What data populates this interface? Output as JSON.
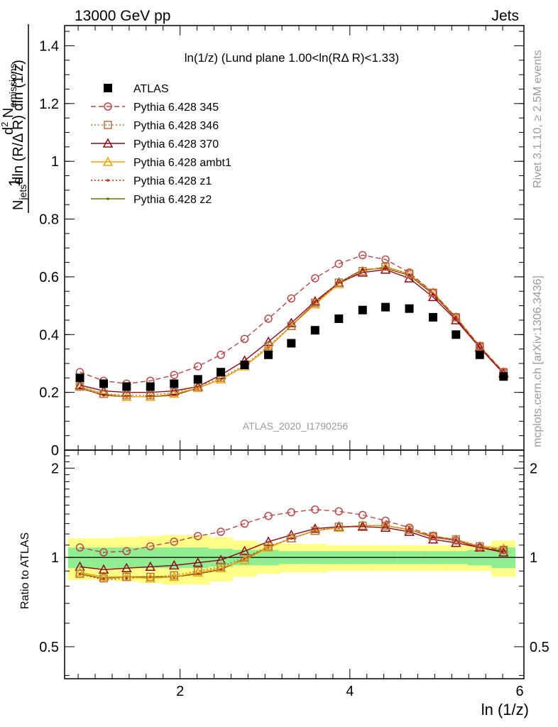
{
  "header": {
    "left": "13000 GeV pp",
    "right": "Jets"
  },
  "side_labels": {
    "rivet": "Rivet 3.1.10, ≥ 2.5M events",
    "mcplots": "mcplots.cern.ch [arXiv:1306.3436]"
  },
  "watermark": "ATLAS_2020_I1790256",
  "chart_data": [
    {
      "type": "scatter",
      "title": "ln(1/z) (Lund plane 1.00<ln(RΔ R)<1.33)",
      "xlabel": "ln (1/z)",
      "ylabel": "1/N_jets d²N_emissions / dln(R/ΔR) dln(1/z)",
      "xlim": [
        0.64,
        6.05
      ],
      "ylim": [
        0,
        1.47
      ],
      "yticks": [
        "0",
        "0.2",
        "0.4",
        "0.6",
        "0.8",
        "1",
        "1.2",
        "1.4"
      ],
      "xticks": [
        "2",
        "4",
        "6"
      ],
      "x": [
        0.82,
        1.1,
        1.37,
        1.65,
        1.93,
        2.21,
        2.48,
        2.76,
        3.04,
        3.31,
        3.59,
        3.87,
        4.15,
        4.42,
        4.7,
        4.98,
        5.25,
        5.53,
        5.81
      ],
      "series": [
        {
          "name": "ATLAS",
          "color": "#000000",
          "marker": "square",
          "line": "none",
          "values": [
            0.25,
            0.23,
            0.22,
            0.22,
            0.23,
            0.245,
            0.27,
            0.295,
            0.33,
            0.37,
            0.415,
            0.455,
            0.485,
            0.495,
            0.49,
            0.46,
            0.4,
            0.33,
            0.255
          ]
        },
        {
          "name": "Pythia 6.428 345",
          "color": "#b5484a",
          "marker": "circle",
          "line": "dashed",
          "values": [
            0.27,
            0.24,
            0.23,
            0.24,
            0.26,
            0.29,
            0.33,
            0.385,
            0.455,
            0.525,
            0.595,
            0.645,
            0.675,
            0.66,
            0.615,
            0.545,
            0.46,
            0.36,
            0.27
          ]
        },
        {
          "name": "Pythia 6.428 346",
          "color": "#a8794a",
          "marker": "square-open",
          "line": "dotted",
          "values": [
            0.22,
            0.195,
            0.19,
            0.19,
            0.2,
            0.22,
            0.25,
            0.295,
            0.36,
            0.43,
            0.51,
            0.58,
            0.62,
            0.635,
            0.61,
            0.545,
            0.46,
            0.36,
            0.27
          ]
        },
        {
          "name": "Pythia 6.428 370",
          "color": "#8b0a1a",
          "marker": "triangle-open",
          "line": "solid",
          "values": [
            0.225,
            0.205,
            0.2,
            0.2,
            0.205,
            0.22,
            0.26,
            0.31,
            0.375,
            0.44,
            0.515,
            0.58,
            0.615,
            0.625,
            0.595,
            0.53,
            0.45,
            0.355,
            0.265
          ]
        },
        {
          "name": "Pythia 6.428 ambt1",
          "color": "#f4a300",
          "marker": "triangle-open",
          "line": "solid",
          "values": [
            0.22,
            0.195,
            0.185,
            0.185,
            0.195,
            0.215,
            0.245,
            0.29,
            0.355,
            0.43,
            0.505,
            0.575,
            0.62,
            0.635,
            0.61,
            0.545,
            0.46,
            0.36,
            0.27
          ]
        },
        {
          "name": "Pythia 6.428 z1",
          "color": "#cc2200",
          "marker": "dot",
          "line": "dotted",
          "values": [
            0.215,
            0.19,
            0.185,
            0.185,
            0.19,
            0.215,
            0.245,
            0.29,
            0.355,
            0.43,
            0.51,
            0.58,
            0.625,
            0.63,
            0.605,
            0.54,
            0.455,
            0.355,
            0.265
          ]
        },
        {
          "name": "Pythia 6.428 z2",
          "color": "#6b6b00",
          "marker": "dot",
          "line": "solid",
          "values": [
            0.215,
            0.19,
            0.185,
            0.185,
            0.19,
            0.215,
            0.245,
            0.29,
            0.355,
            0.43,
            0.51,
            0.58,
            0.625,
            0.63,
            0.605,
            0.54,
            0.455,
            0.355,
            0.265
          ]
        }
      ]
    },
    {
      "type": "line",
      "title": "",
      "xlabel": "ln (1/z)",
      "ylabel": "Ratio to ATLAS",
      "xlim": [
        0.64,
        6.05
      ],
      "ylim": [
        0.39,
        2.3
      ],
      "log_y": true,
      "yticks": [
        "0.5",
        "1",
        "2"
      ],
      "xticks": [
        "2",
        "4",
        "6"
      ],
      "uncertainty_bands": {
        "stat_color": "#90ee90",
        "total_color": "#ffff88",
        "stat_half_width": [
          0.08,
          0.08,
          0.08,
          0.08,
          0.08,
          0.08,
          0.07,
          0.06,
          0.06,
          0.05,
          0.05,
          0.05,
          0.05,
          0.05,
          0.05,
          0.05,
          0.05,
          0.06,
          0.08
        ],
        "total_half_width": [
          0.16,
          0.16,
          0.17,
          0.18,
          0.19,
          0.19,
          0.17,
          0.14,
          0.12,
          0.11,
          0.11,
          0.1,
          0.1,
          0.1,
          0.1,
          0.1,
          0.1,
          0.1,
          0.14
        ]
      },
      "x": [
        0.82,
        1.1,
        1.37,
        1.65,
        1.93,
        2.21,
        2.48,
        2.76,
        3.04,
        3.31,
        3.59,
        3.87,
        4.15,
        4.42,
        4.7,
        4.98,
        5.25,
        5.53,
        5.81
      ],
      "series": [
        {
          "name": "Pythia 6.428 345",
          "color": "#b5484a",
          "marker": "circle",
          "line": "dashed",
          "values": [
            1.08,
            1.04,
            1.05,
            1.09,
            1.13,
            1.18,
            1.22,
            1.3,
            1.38,
            1.42,
            1.45,
            1.43,
            1.39,
            1.33,
            1.26,
            1.18,
            1.14,
            1.08,
            1.06
          ]
        },
        {
          "name": "Pythia 6.428 346",
          "color": "#a8794a",
          "marker": "square-open",
          "line": "dotted",
          "values": [
            0.88,
            0.85,
            0.86,
            0.86,
            0.87,
            0.9,
            0.93,
            1.0,
            1.09,
            1.16,
            1.23,
            1.27,
            1.28,
            1.28,
            1.24,
            1.18,
            1.15,
            1.09,
            1.06
          ]
        },
        {
          "name": "Pythia 6.428 370",
          "color": "#8b0a1a",
          "marker": "triangle-open",
          "line": "solid",
          "values": [
            0.93,
            0.91,
            0.92,
            0.93,
            0.94,
            0.96,
            0.98,
            1.05,
            1.13,
            1.19,
            1.25,
            1.27,
            1.27,
            1.26,
            1.22,
            1.15,
            1.12,
            1.08,
            1.04
          ]
        },
        {
          "name": "Pythia 6.428 ambt1",
          "color": "#f4a300",
          "marker": "triangle-open",
          "line": "solid",
          "values": [
            0.89,
            0.86,
            0.86,
            0.85,
            0.86,
            0.89,
            0.92,
            0.98,
            1.08,
            1.16,
            1.23,
            1.26,
            1.28,
            1.28,
            1.24,
            1.18,
            1.15,
            1.09,
            1.07
          ]
        },
        {
          "name": "Pythia 6.428 z1",
          "color": "#cc2200",
          "marker": "dot",
          "line": "dotted",
          "values": [
            0.88,
            0.84,
            0.85,
            0.86,
            0.86,
            0.88,
            0.91,
            0.99,
            1.08,
            1.16,
            1.23,
            1.26,
            1.28,
            1.28,
            1.24,
            1.17,
            1.14,
            1.08,
            1.04
          ]
        },
        {
          "name": "Pythia 6.428 z2",
          "color": "#6b6b00",
          "marker": "dot",
          "line": "solid",
          "values": [
            0.88,
            0.85,
            0.86,
            0.86,
            0.86,
            0.88,
            0.91,
            0.99,
            1.08,
            1.16,
            1.23,
            1.26,
            1.28,
            1.28,
            1.24,
            1.17,
            1.14,
            1.08,
            1.05
          ]
        }
      ]
    }
  ]
}
